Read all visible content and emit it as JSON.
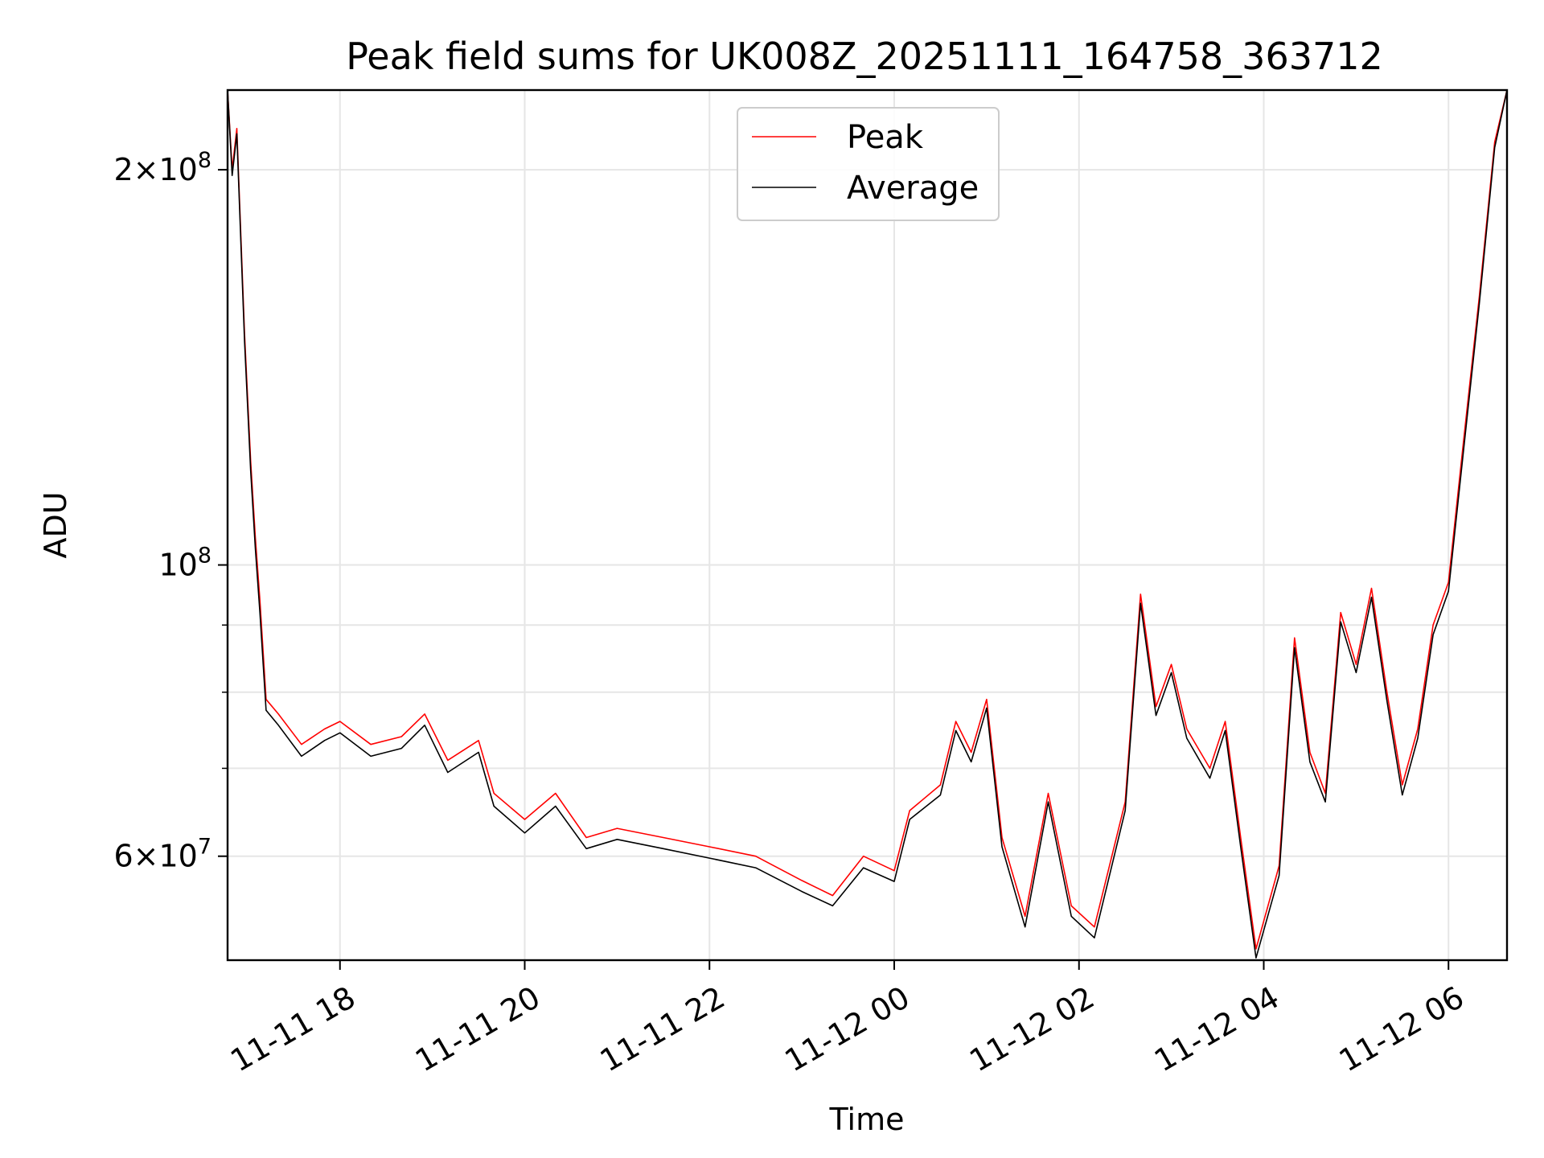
{
  "chart_data": {
    "type": "line",
    "title": "Peak field sums for UK008Z_20251111_164758_363712",
    "xlabel": "Time",
    "ylabel": "ADU",
    "yscale": "log",
    "ylim": [
      50000000,
      230000000
    ],
    "xlim": [
      "2025-11-11 16:47",
      "2025-11-12 06:38"
    ],
    "grid": true,
    "legend": {
      "placement": "top-center",
      "entries": [
        "Peak",
        "Average"
      ]
    },
    "x_ticks": [
      {
        "label": "11-11 18",
        "t": "2025-11-11 18:00"
      },
      {
        "label": "11-11 20",
        "t": "2025-11-11 20:00"
      },
      {
        "label": "11-11 22",
        "t": "2025-11-11 22:00"
      },
      {
        "label": "11-12 00",
        "t": "2025-11-12 00:00"
      },
      {
        "label": "11-12 02",
        "t": "2025-11-12 02:00"
      },
      {
        "label": "11-12 04",
        "t": "2025-11-12 04:00"
      },
      {
        "label": "11-12 06",
        "t": "2025-11-12 06:00"
      }
    ],
    "y_ticks": [
      {
        "mant": "2",
        "exp": "8",
        "value": 200000000
      },
      {
        "mant": "",
        "exp": "8",
        "value": 100000000
      },
      {
        "mant": "6",
        "exp": "7",
        "value": 60000000
      }
    ],
    "series": [
      {
        "name": "Peak",
        "color": "#ff0000",
        "points": [
          [
            "2025-11-11 16:47",
            230000000
          ],
          [
            "2025-11-11 16:50",
            200000000
          ],
          [
            "2025-11-11 16:53",
            215000000
          ],
          [
            "2025-11-11 16:58",
            150000000
          ],
          [
            "2025-11-11 17:02",
            120000000
          ],
          [
            "2025-11-11 17:05",
            105000000
          ],
          [
            "2025-11-11 17:08",
            94000000
          ],
          [
            "2025-11-11 17:12",
            79000000
          ],
          [
            "2025-11-11 17:20",
            77000000
          ],
          [
            "2025-11-11 17:35",
            73000000
          ],
          [
            "2025-11-11 17:50",
            75000000
          ],
          [
            "2025-11-11 18:00",
            76000000
          ],
          [
            "2025-11-11 18:20",
            73000000
          ],
          [
            "2025-11-11 18:40",
            74000000
          ],
          [
            "2025-11-11 18:55",
            77000000
          ],
          [
            "2025-11-11 19:10",
            71000000
          ],
          [
            "2025-11-11 19:30",
            73500000
          ],
          [
            "2025-11-11 19:40",
            67000000
          ],
          [
            "2025-11-11 20:00",
            64000000
          ],
          [
            "2025-11-11 20:20",
            67000000
          ],
          [
            "2025-11-11 20:40",
            62000000
          ],
          [
            "2025-11-11 21:00",
            63000000
          ],
          [
            "2025-11-11 21:30",
            62000000
          ],
          [
            "2025-11-11 22:00",
            61000000
          ],
          [
            "2025-11-11 22:30",
            60000000
          ],
          [
            "2025-11-11 23:00",
            57500000
          ],
          [
            "2025-11-11 23:20",
            56000000
          ],
          [
            "2025-11-11 23:40",
            60000000
          ],
          [
            "2025-11-12 00:00",
            58500000
          ],
          [
            "2025-11-12 00:10",
            65000000
          ],
          [
            "2025-11-12 00:30",
            68000000
          ],
          [
            "2025-11-12 00:40",
            76000000
          ],
          [
            "2025-11-12 00:50",
            72000000
          ],
          [
            "2025-11-12 01:00",
            79000000
          ],
          [
            "2025-11-12 01:10",
            62000000
          ],
          [
            "2025-11-12 01:25",
            54000000
          ],
          [
            "2025-11-12 01:40",
            67000000
          ],
          [
            "2025-11-12 01:55",
            55000000
          ],
          [
            "2025-11-12 02:10",
            53000000
          ],
          [
            "2025-11-12 02:30",
            66000000
          ],
          [
            "2025-11-12 02:40",
            95000000
          ],
          [
            "2025-11-12 02:50",
            78000000
          ],
          [
            "2025-11-12 03:00",
            84000000
          ],
          [
            "2025-11-12 03:10",
            75000000
          ],
          [
            "2025-11-12 03:25",
            70000000
          ],
          [
            "2025-11-12 03:35",
            76000000
          ],
          [
            "2025-11-12 03:45",
            62000000
          ],
          [
            "2025-11-12 03:55",
            51000000
          ],
          [
            "2025-11-12 04:10",
            59000000
          ],
          [
            "2025-11-12 04:20",
            88000000
          ],
          [
            "2025-11-12 04:30",
            72000000
          ],
          [
            "2025-11-12 04:40",
            67000000
          ],
          [
            "2025-11-12 04:50",
            92000000
          ],
          [
            "2025-11-12 05:00",
            84000000
          ],
          [
            "2025-11-12 05:10",
            96000000
          ],
          [
            "2025-11-12 05:20",
            80000000
          ],
          [
            "2025-11-12 05:30",
            68000000
          ],
          [
            "2025-11-12 05:40",
            75000000
          ],
          [
            "2025-11-12 05:50",
            90000000
          ],
          [
            "2025-11-12 06:00",
            97000000
          ],
          [
            "2025-11-12 06:10",
            125000000
          ],
          [
            "2025-11-12 06:20",
            160000000
          ],
          [
            "2025-11-12 06:30",
            210000000
          ],
          [
            "2025-11-12 06:38",
            230000000
          ]
        ]
      },
      {
        "name": "Average",
        "color": "#000000",
        "points": [
          [
            "2025-11-11 16:47",
            230000000
          ],
          [
            "2025-11-11 16:50",
            198000000
          ],
          [
            "2025-11-11 16:53",
            213000000
          ],
          [
            "2025-11-11 16:58",
            148000000
          ],
          [
            "2025-11-11 17:02",
            118000000
          ],
          [
            "2025-11-11 17:05",
            103000000
          ],
          [
            "2025-11-11 17:08",
            92000000
          ],
          [
            "2025-11-11 17:12",
            77500000
          ],
          [
            "2025-11-11 17:20",
            75500000
          ],
          [
            "2025-11-11 17:35",
            71500000
          ],
          [
            "2025-11-11 17:50",
            73500000
          ],
          [
            "2025-11-11 18:00",
            74500000
          ],
          [
            "2025-11-11 18:20",
            71500000
          ],
          [
            "2025-11-11 18:40",
            72500000
          ],
          [
            "2025-11-11 18:55",
            75500000
          ],
          [
            "2025-11-11 19:10",
            69500000
          ],
          [
            "2025-11-11 19:30",
            72000000
          ],
          [
            "2025-11-11 19:40",
            65500000
          ],
          [
            "2025-11-11 20:00",
            62500000
          ],
          [
            "2025-11-11 20:20",
            65500000
          ],
          [
            "2025-11-11 20:40",
            60800000
          ],
          [
            "2025-11-11 21:00",
            61800000
          ],
          [
            "2025-11-11 21:30",
            60800000
          ],
          [
            "2025-11-11 22:00",
            59800000
          ],
          [
            "2025-11-11 22:30",
            58800000
          ],
          [
            "2025-11-11 23:00",
            56400000
          ],
          [
            "2025-11-11 23:20",
            55000000
          ],
          [
            "2025-11-11 23:40",
            58800000
          ],
          [
            "2025-11-12 00:00",
            57400000
          ],
          [
            "2025-11-12 00:10",
            64000000
          ],
          [
            "2025-11-12 00:30",
            66800000
          ],
          [
            "2025-11-12 00:40",
            74800000
          ],
          [
            "2025-11-12 00:50",
            70800000
          ],
          [
            "2025-11-12 01:00",
            77800000
          ],
          [
            "2025-11-12 01:10",
            61000000
          ],
          [
            "2025-11-12 01:25",
            53000000
          ],
          [
            "2025-11-12 01:40",
            66000000
          ],
          [
            "2025-11-12 01:55",
            54000000
          ],
          [
            "2025-11-12 02:10",
            52000000
          ],
          [
            "2025-11-12 02:30",
            65000000
          ],
          [
            "2025-11-12 02:40",
            93500000
          ],
          [
            "2025-11-12 02:50",
            76800000
          ],
          [
            "2025-11-12 03:00",
            82800000
          ],
          [
            "2025-11-12 03:10",
            73800000
          ],
          [
            "2025-11-12 03:25",
            68800000
          ],
          [
            "2025-11-12 03:35",
            74800000
          ],
          [
            "2025-11-12 03:45",
            61000000
          ],
          [
            "2025-11-12 03:55",
            50200000
          ],
          [
            "2025-11-12 04:10",
            58000000
          ],
          [
            "2025-11-12 04:20",
            86500000
          ],
          [
            "2025-11-12 04:30",
            70800000
          ],
          [
            "2025-11-12 04:40",
            66000000
          ],
          [
            "2025-11-12 04:50",
            90500000
          ],
          [
            "2025-11-12 05:00",
            82800000
          ],
          [
            "2025-11-12 05:10",
            94500000
          ],
          [
            "2025-11-12 05:20",
            78800000
          ],
          [
            "2025-11-12 05:30",
            66800000
          ],
          [
            "2025-11-12 05:40",
            73800000
          ],
          [
            "2025-11-12 05:50",
            88500000
          ],
          [
            "2025-11-12 06:00",
            95500000
          ],
          [
            "2025-11-12 06:10",
            123000000
          ],
          [
            "2025-11-12 06:20",
            158000000
          ],
          [
            "2025-11-12 06:30",
            208000000
          ],
          [
            "2025-11-12 06:38",
            230000000
          ]
        ]
      }
    ]
  }
}
